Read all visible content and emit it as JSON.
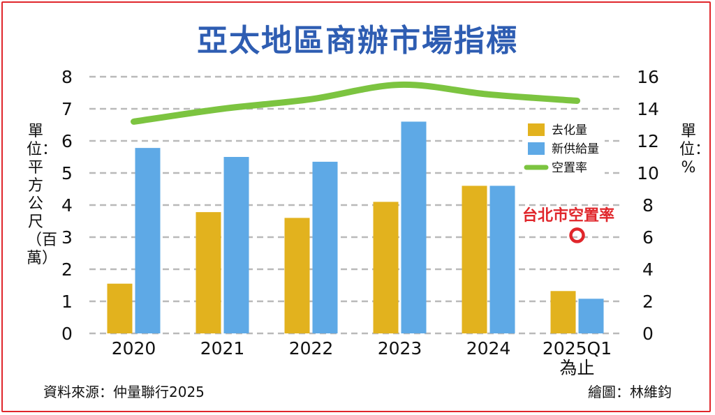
{
  "chart_data": {
    "type": "bar",
    "title": "亞太地區商辦市場指標",
    "ylabel": "單位：平方公尺（百萬）",
    "y2label": "單位：%",
    "ylim": [
      0,
      8
    ],
    "y2lim": [
      0,
      16
    ],
    "yticks": [
      "0",
      "1",
      "2",
      "3",
      "4",
      "5",
      "6",
      "7",
      "8"
    ],
    "y2ticks": [
      "0",
      "2",
      "4",
      "6",
      "8",
      "10",
      "12",
      "14",
      "16"
    ],
    "categories": [
      "2020",
      "2021",
      "2022",
      "2023",
      "2024",
      "2025Q1為止"
    ],
    "series": [
      {
        "name": "去化量",
        "type": "bar",
        "color": "#e2b21e",
        "values": [
          1.55,
          3.78,
          3.6,
          4.1,
          4.6,
          1.32
        ]
      },
      {
        "name": "新供給量",
        "type": "bar",
        "color": "#5ea9e6",
        "values": [
          5.78,
          5.5,
          5.35,
          6.6,
          4.6,
          1.08
        ]
      },
      {
        "name": "空置率",
        "type": "line",
        "axis": "right",
        "color": "#7cc440",
        "values": [
          13.2,
          14.0,
          14.6,
          15.5,
          14.9,
          14.5
        ]
      }
    ],
    "grid": true,
    "legend_position": "top-right",
    "annotation": {
      "text": "台北市空置率",
      "category": "2025Q1為止",
      "value": 6.2,
      "color": "#e0262b"
    }
  },
  "source_label": "資料來源：仲量聯行2025",
  "credit_label": "繪圖：林維鈞"
}
